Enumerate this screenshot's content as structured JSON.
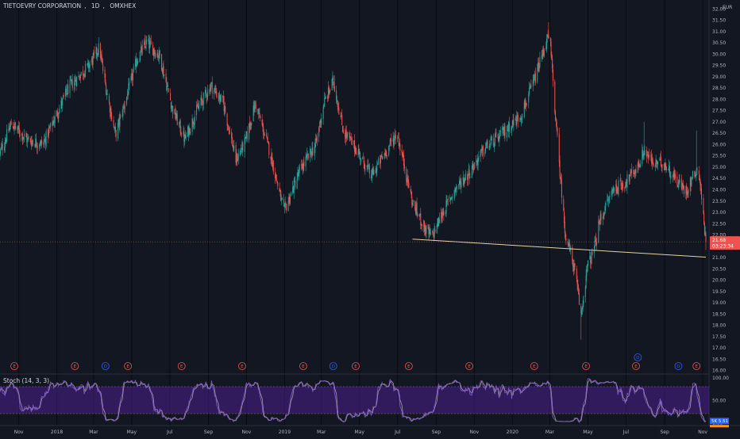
{
  "header": {
    "symbol": "TIETOEVRY CORPORATION",
    "interval": "1D",
    "exchange": "OMXHEX",
    "currency": "EUR"
  },
  "colors": {
    "background": "#131722",
    "up": "#26a69a",
    "down": "#ef5350",
    "support_line": "#e6d3a3",
    "price_line": "#ef5350",
    "stoch_k": "#7e57c2",
    "stoch_d": "#9e9e9e",
    "stoch_band": "#4a1f8c",
    "earnings": "#ef5350",
    "dividend": "#2962ff"
  },
  "chart_data": [
    {
      "type": "candlestick",
      "title": "TIETOEVRY CORPORATION, 1D, OMXHEX",
      "y_ticks": [
        "32.00",
        "31.50",
        "31.00",
        "30.50",
        "30.00",
        "29.50",
        "29.00",
        "28.50",
        "28.00",
        "27.50",
        "27.00",
        "26.50",
        "26.00",
        "25.50",
        "25.00",
        "24.50",
        "24.00",
        "23.50",
        "23.00",
        "22.50",
        "22.00",
        "21.50",
        "21.00",
        "20.50",
        "20.00",
        "19.50",
        "19.00",
        "18.50",
        "18.00",
        "17.50",
        "17.00",
        "16.50",
        "16.00"
      ],
      "ylim": [
        15.9,
        32.1
      ],
      "x_ticks": [
        "Nov",
        "2018",
        "Mar",
        "May",
        "Jul",
        "Sep",
        "Nov",
        "2019",
        "Mar",
        "May",
        "Jul",
        "Sep",
        "Nov",
        "2020",
        "Mar",
        "May",
        "Jul",
        "Sep",
        "Nov"
      ],
      "x_range": [
        "2017-10-02",
        "2020-11-06"
      ],
      "trend_anchors": [
        [
          "2017-10-02",
          25.6
        ],
        [
          "2017-10-20",
          26.9
        ],
        [
          "2017-11-15",
          26.2
        ],
        [
          "2017-12-10",
          26.0
        ],
        [
          "2018-01-20",
          28.5
        ],
        [
          "2018-02-25",
          29.6
        ],
        [
          "2018-03-10",
          30.3
        ],
        [
          "2018-03-20",
          28.6
        ],
        [
          "2018-04-05",
          26.4
        ],
        [
          "2018-04-25",
          28.3
        ],
        [
          "2018-05-10",
          29.8
        ],
        [
          "2018-05-25",
          30.5
        ],
        [
          "2018-06-15",
          29.9
        ],
        [
          "2018-07-05",
          27.6
        ],
        [
          "2018-07-25",
          26.2
        ],
        [
          "2018-08-15",
          27.6
        ],
        [
          "2018-09-05",
          28.6
        ],
        [
          "2018-09-25",
          27.8
        ],
        [
          "2018-10-15",
          25.3
        ],
        [
          "2018-10-30",
          26.1
        ],
        [
          "2018-11-15",
          27.8
        ],
        [
          "2018-12-10",
          25.5
        ],
        [
          "2018-12-31",
          23.0
        ],
        [
          "2019-01-25",
          24.8
        ],
        [
          "2019-02-20",
          26.0
        ],
        [
          "2019-03-05",
          27.8
        ],
        [
          "2019-03-20",
          28.8
        ],
        [
          "2019-04-05",
          26.6
        ],
        [
          "2019-04-30",
          25.6
        ],
        [
          "2019-05-20",
          24.6
        ],
        [
          "2019-06-15",
          25.8
        ],
        [
          "2019-06-30",
          26.5
        ],
        [
          "2019-07-10",
          25.3
        ],
        [
          "2019-07-25",
          23.4
        ],
        [
          "2019-08-15",
          22.2
        ],
        [
          "2019-08-25",
          21.9
        ],
        [
          "2019-09-10",
          22.9
        ],
        [
          "2019-10-01",
          24.0
        ],
        [
          "2019-10-25",
          24.8
        ],
        [
          "2019-11-20",
          25.9
        ],
        [
          "2019-12-10",
          26.3
        ],
        [
          "2020-01-15",
          27.3
        ],
        [
          "2020-02-05",
          28.8
        ],
        [
          "2020-02-25",
          30.6
        ],
        [
          "2020-03-01",
          30.7
        ],
        [
          "2020-03-12",
          26.5
        ],
        [
          "2020-03-25",
          22.2
        ],
        [
          "2020-04-10",
          20.4
        ],
        [
          "2020-04-20",
          18.4
        ],
        [
          "2020-04-30",
          20.6
        ],
        [
          "2020-05-10",
          21.2
        ],
        [
          "2020-05-20",
          22.6
        ],
        [
          "2020-06-10",
          24.0
        ],
        [
          "2020-06-30",
          24.3
        ],
        [
          "2020-07-20",
          25.0
        ],
        [
          "2020-07-30",
          25.7
        ],
        [
          "2020-08-15",
          25.1
        ],
        [
          "2020-08-30",
          25.2
        ],
        [
          "2020-09-15",
          24.6
        ],
        [
          "2020-10-05",
          23.9
        ],
        [
          "2020-10-20",
          24.8
        ],
        [
          "2020-10-25",
          25.0
        ],
        [
          "2020-11-06",
          21.7
        ]
      ],
      "extremes": [
        {
          "date": "2018-03-12",
          "high": 30.45
        },
        {
          "date": "2018-05-25",
          "high": 30.65
        },
        {
          "date": "2019-03-22",
          "high": 29.05
        },
        {
          "date": "2019-08-28",
          "low": 21.75
        },
        {
          "date": "2020-02-28",
          "high": 31.4
        },
        {
          "date": "2020-04-20",
          "low": 17.35
        },
        {
          "date": "2020-07-30",
          "high": 27.0
        },
        {
          "date": "2020-10-22",
          "high": 26.6
        }
      ],
      "support_line": {
        "from": [
          "2019-07-25",
          21.8
        ],
        "to": [
          "2020-11-06",
          21.0
        ]
      },
      "last_price": {
        "value": 21.68,
        "label": "21.68",
        "countdown": "03:23:34"
      },
      "event_markers": [
        {
          "date": "2017-10-25",
          "type": "E"
        },
        {
          "date": "2018-01-30",
          "type": "E"
        },
        {
          "date": "2018-03-20",
          "type": "D"
        },
        {
          "date": "2018-04-25",
          "type": "E"
        },
        {
          "date": "2018-07-20",
          "type": "E"
        },
        {
          "date": "2018-10-25",
          "type": "E"
        },
        {
          "date": "2019-01-31",
          "type": "E"
        },
        {
          "date": "2019-03-20",
          "type": "D"
        },
        {
          "date": "2019-04-25",
          "type": "E"
        },
        {
          "date": "2019-07-19",
          "type": "E"
        },
        {
          "date": "2019-10-24",
          "type": "E"
        },
        {
          "date": "2020-02-05",
          "type": "E"
        },
        {
          "date": "2020-04-28",
          "type": "E"
        },
        {
          "date": "2020-07-17",
          "type": "E"
        },
        {
          "date": "2020-07-20",
          "type": "D"
        },
        {
          "date": "2020-09-23",
          "type": "D"
        },
        {
          "date": "2020-10-22",
          "type": "E"
        }
      ]
    },
    {
      "type": "line",
      "title": "Stoch (14, 3, 3)",
      "y_ticks": [
        "100.00",
        "50.00",
        "0.00"
      ],
      "ylim": [
        0,
        100
      ],
      "band": [
        20,
        80
      ],
      "last_k": "5.51",
      "k_label": "5K"
    }
  ]
}
